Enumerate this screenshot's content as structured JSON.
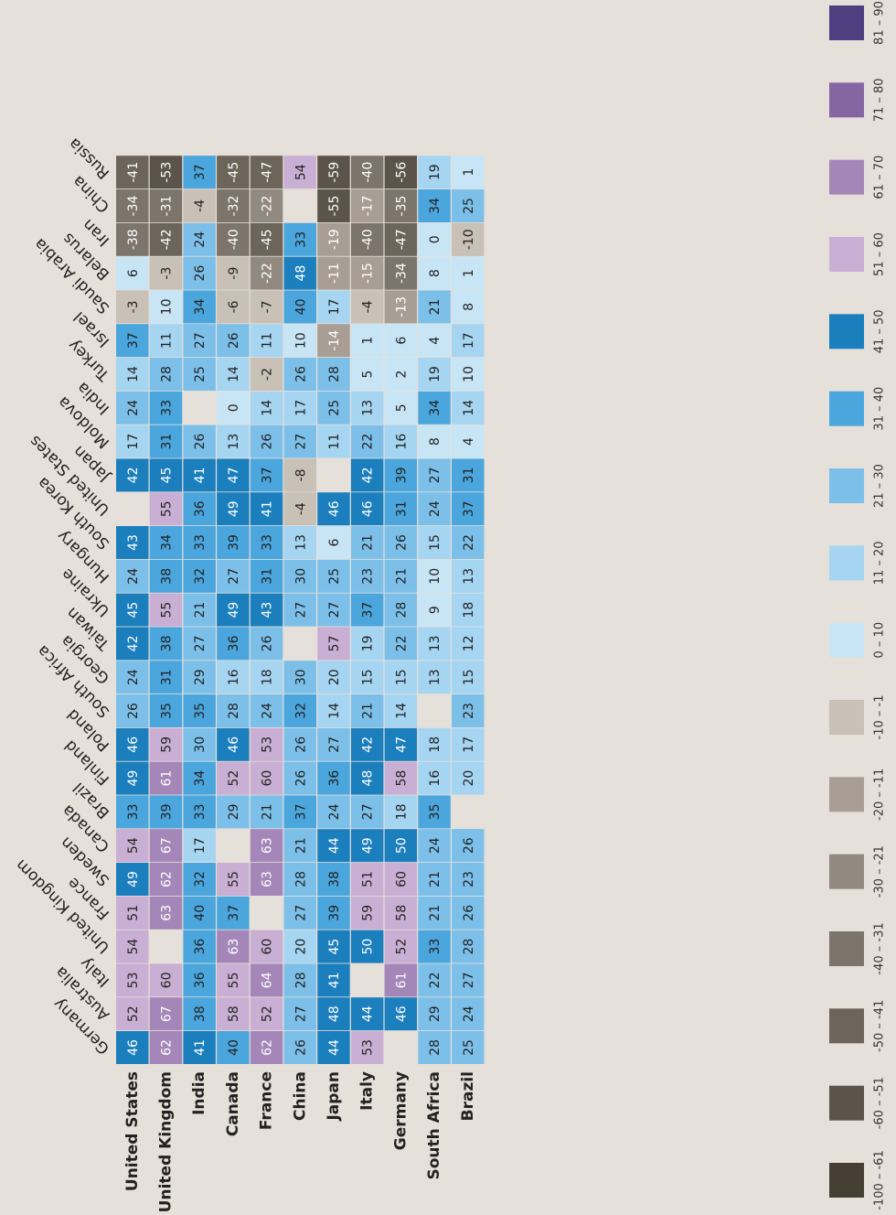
{
  "chart_data": {
    "type": "heatmap",
    "rows": [
      "United States",
      "United Kingdom",
      "India",
      "Canada",
      "France",
      "China",
      "Japan",
      "Italy",
      "Germany",
      "South Africa",
      "Brazil"
    ],
    "columns": [
      "Germany",
      "Australia",
      "Italy",
      "United Kingdom",
      "France",
      "Sweden",
      "Canada",
      "Brazil",
      "Finland",
      "Poland",
      "South Africa",
      "Georgia",
      "Taiwan",
      "Ukraine",
      "Hungary",
      "South Korea",
      "United States",
      "Japan",
      "Moldova",
      "India",
      "Turkey",
      "Israel",
      "Saudi Arabia",
      "Belarus",
      "Iran",
      "China",
      "Russia"
    ],
    "values": [
      [
        46,
        52,
        53,
        54,
        51,
        49,
        54,
        33,
        49,
        46,
        26,
        24,
        42,
        45,
        24,
        43,
        null,
        42,
        17,
        24,
        14,
        37,
        -3,
        6,
        -38,
        -34,
        -41
      ],
      [
        62,
        67,
        60,
        null,
        63,
        62,
        67,
        39,
        61,
        59,
        35,
        31,
        38,
        55,
        38,
        34,
        55,
        45,
        31,
        33,
        28,
        11,
        10,
        -3,
        -42,
        -31,
        -53
      ],
      [
        41,
        38,
        36,
        36,
        40,
        32,
        17,
        33,
        34,
        30,
        35,
        29,
        27,
        21,
        32,
        33,
        36,
        41,
        26,
        null,
        25,
        27,
        34,
        26,
        24,
        -4,
        37
      ],
      [
        40,
        58,
        55,
        63,
        37,
        55,
        null,
        29,
        52,
        46,
        28,
        16,
        36,
        49,
        27,
        39,
        49,
        47,
        13,
        0,
        14,
        26,
        -6,
        -9,
        -40,
        -32,
        -45
      ],
      [
        62,
        52,
        64,
        60,
        null,
        63,
        63,
        21,
        60,
        53,
        24,
        18,
        26,
        43,
        31,
        33,
        41,
        37,
        26,
        14,
        -2,
        11,
        -7,
        -22,
        -45,
        -22,
        -47
      ],
      [
        26,
        27,
        28,
        20,
        27,
        28,
        21,
        37,
        26,
        26,
        32,
        30,
        null,
        27,
        30,
        13,
        -4,
        -8,
        27,
        17,
        26,
        10,
        40,
        48,
        33,
        null,
        54
      ],
      [
        44,
        48,
        41,
        45,
        39,
        38,
        44,
        24,
        36,
        27,
        14,
        20,
        57,
        27,
        25,
        6,
        46,
        null,
        11,
        25,
        28,
        -14,
        17,
        -11,
        -19,
        -55,
        -59
      ],
      [
        53,
        44,
        null,
        50,
        59,
        51,
        49,
        27,
        48,
        42,
        21,
        15,
        19,
        37,
        23,
        21,
        46,
        42,
        22,
        13,
        5,
        1,
        -4,
        -15,
        -40,
        -17,
        -40
      ],
      [
        null,
        46,
        61,
        52,
        58,
        60,
        50,
        18,
        58,
        47,
        14,
        15,
        22,
        28,
        21,
        26,
        31,
        39,
        16,
        5,
        2,
        6,
        -13,
        -34,
        -47,
        -35,
        -56
      ],
      [
        28,
        29,
        22,
        33,
        21,
        21,
        24,
        35,
        16,
        18,
        null,
        13,
        13,
        9,
        10,
        15,
        24,
        27,
        8,
        34,
        19,
        4,
        21,
        8,
        0,
        34,
        19
      ],
      [
        25,
        24,
        27,
        28,
        26,
        23,
        26,
        null,
        20,
        17,
        23,
        15,
        12,
        18,
        13,
        22,
        37,
        31,
        4,
        14,
        10,
        17,
        8,
        1,
        -10,
        25,
        1
      ]
    ],
    "legend": [
      {
        "label": "-100 – -61",
        "min": -100,
        "max": -61,
        "color": "#463e32",
        "text": "#ffffff"
      },
      {
        "label": "-60 – -51",
        "min": -60,
        "max": -51,
        "color": "#5c544b",
        "text": "#ffffff"
      },
      {
        "label": "-50 – -41",
        "min": -50,
        "max": -41,
        "color": "#6d645a",
        "text": "#ffffff"
      },
      {
        "label": "-40 – -31",
        "min": -40,
        "max": -31,
        "color": "#7d746b",
        "text": "#ffffff"
      },
      {
        "label": "-30 – -21",
        "min": -30,
        "max": -21,
        "color": "#928a80",
        "text": "#ffffff"
      },
      {
        "label": "-20 – -11",
        "min": -20,
        "max": -11,
        "color": "#a89e94",
        "text": "#ffffff"
      },
      {
        "label": "-10 – -1",
        "min": -10,
        "max": -1,
        "color": "#c9c0b6",
        "text": "#222222"
      },
      {
        "label": "0 – 10",
        "min": 0,
        "max": 10,
        "color": "#c8e5f5",
        "text": "#222222"
      },
      {
        "label": "11 – 20",
        "min": 11,
        "max": 20,
        "color": "#a6d5f2",
        "text": "#222222"
      },
      {
        "label": "21 – 30",
        "min": 21,
        "max": 30,
        "color": "#7cc0ea",
        "text": "#222222"
      },
      {
        "label": "31 – 40",
        "min": 31,
        "max": 40,
        "color": "#4aa6dd",
        "text": "#222222"
      },
      {
        "label": "41 – 50",
        "min": 41,
        "max": 50,
        "color": "#1c7fbd",
        "text": "#ffffff"
      },
      {
        "label": "51 – 60",
        "min": 51,
        "max": 60,
        "color": "#c9afd3",
        "text": "#222222"
      },
      {
        "label": "61 – 70",
        "min": 61,
        "max": 70,
        "color": "#a487b8",
        "text": "#ffffff"
      },
      {
        "label": "71 – 80",
        "min": 71,
        "max": 80,
        "color": "#8566a3",
        "text": "#ffffff"
      },
      {
        "label": "81 – 90",
        "min": 81,
        "max": 90,
        "color": "#4f3f80",
        "text": "#ffffff"
      }
    ]
  }
}
